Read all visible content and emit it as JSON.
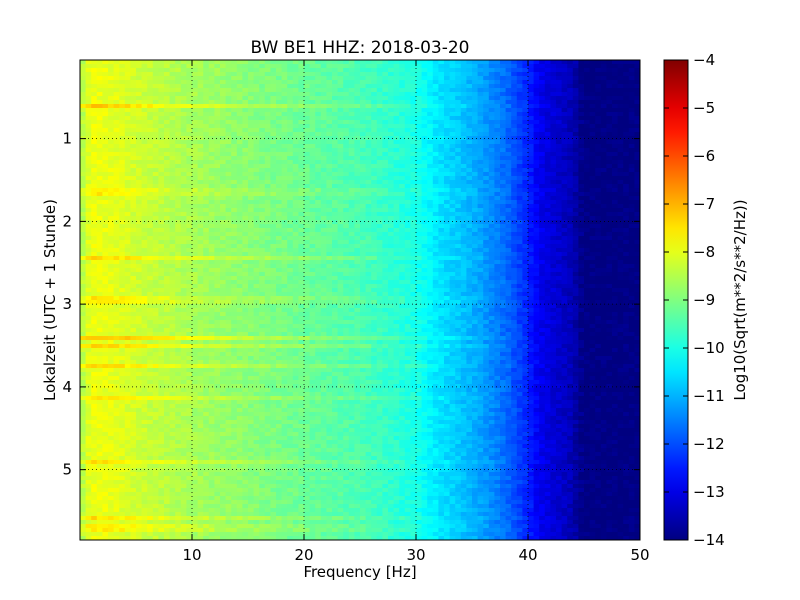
{
  "chart_data": {
    "type": "heatmap",
    "title": "BW BE1 HHZ: 2018-03-20",
    "xlabel": "Frequency [Hz]",
    "ylabel": "Lokalzeit (UTC + 1 Stunde)",
    "xlim": [
      0,
      50
    ],
    "ylim": [
      5.85,
      0.05
    ],
    "x_ticks": [
      10,
      20,
      30,
      40,
      50
    ],
    "x_tick_labels": [
      "10",
      "20",
      "30",
      "40",
      "50"
    ],
    "y_ticks": [
      1,
      2,
      3,
      4,
      5
    ],
    "y_tick_labels": [
      "1",
      "2",
      "3",
      "4",
      "5"
    ],
    "grid": true,
    "colormap": "jet",
    "colorbar": {
      "label": "Log10(Sqrt(m**2/s**2/Hz))",
      "range": [
        -14,
        -4
      ],
      "ticks": [
        -4,
        -5,
        -6,
        -7,
        -8,
        -9,
        -10,
        -11,
        -12,
        -13,
        -14
      ],
      "tick_labels": [
        "−4",
        "−5",
        "−6",
        "−7",
        "−8",
        "−9",
        "−10",
        "−11",
        "−12",
        "−13",
        "−14"
      ]
    },
    "profile": {
      "frequency_hz": [
        0,
        1,
        3,
        6,
        10,
        15,
        20,
        25,
        28,
        30,
        32,
        34,
        36,
        38,
        40,
        41,
        42,
        43,
        44,
        45,
        50
      ],
      "log10_amplitude": [
        -8.6,
        -7.9,
        -8.0,
        -8.3,
        -8.6,
        -8.9,
        -9.2,
        -9.5,
        -9.8,
        -10.0,
        -10.5,
        -10.8,
        -11.2,
        -11.7,
        -12.4,
        -12.9,
        -13.1,
        -13.3,
        -13.5,
        -14.0,
        -14.0
      ]
    },
    "disturbance_bands_hours": [
      {
        "time": 0.6,
        "delta": 0.7
      },
      {
        "time": 1.65,
        "delta": 0.35
      },
      {
        "time": 2.45,
        "delta": 0.6
      },
      {
        "time": 2.95,
        "delta": 0.4
      },
      {
        "time": 3.4,
        "delta": 0.9
      },
      {
        "time": 3.5,
        "delta": 0.7
      },
      {
        "time": 3.75,
        "delta": 0.6
      },
      {
        "time": 4.15,
        "delta": 0.5
      },
      {
        "time": 4.9,
        "delta": 0.5
      },
      {
        "time": 5.6,
        "delta": 0.5
      },
      {
        "time": 5.7,
        "delta": 0.4
      }
    ]
  }
}
